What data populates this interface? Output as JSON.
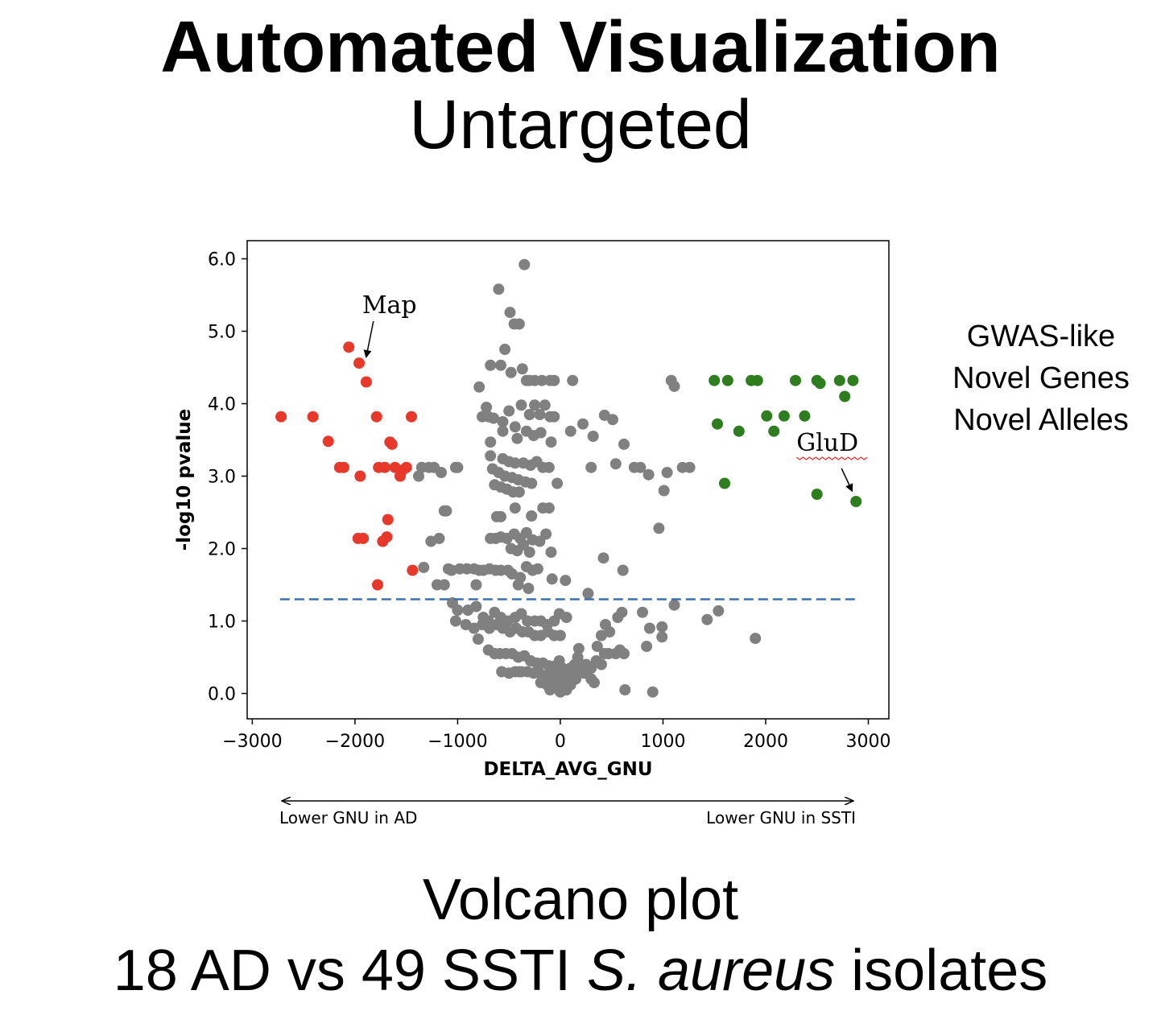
{
  "page": {
    "title": "Automated Visualization",
    "subtitle": "Untargeted",
    "side_notes": [
      "GWAS-like",
      "Novel Genes",
      "Novel Alleles"
    ],
    "caption_line1": "Volcano plot",
    "caption_line2_pre": "18 AD vs 49 SSTI ",
    "caption_line2_italic": "S. aureus",
    "caption_line2_post": " isolates"
  },
  "chart_data": {
    "type": "scatter",
    "xlabel": "DELTA_AVG_GNU",
    "ylabel": "-log10 pvalue",
    "xlim": [
      -3050,
      3200
    ],
    "ylim": [
      -0.35,
      6.25
    ],
    "xticks": [
      -3000,
      -2000,
      -1000,
      0,
      1000,
      2000,
      3000
    ],
    "xtick_labels": [
      "−3000",
      "−2000",
      "−1000",
      "0",
      "1000",
      "2000",
      "3000"
    ],
    "yticks": [
      0,
      1,
      2,
      3,
      4,
      5,
      6
    ],
    "ytick_labels": [
      "0.0",
      "1.0",
      "2.0",
      "3.0",
      "4.0",
      "5.0",
      "6.0"
    ],
    "threshold": {
      "y": 1.3,
      "x_from": -2730,
      "x_to": 2880,
      "color": "#3a6fb0",
      "style": "dashed"
    },
    "direction": {
      "left_label": "Lower GNU in AD",
      "right_label": "Lower GNU in SSTI"
    },
    "annotations": [
      {
        "text": "Map",
        "x": -1930,
        "y": 5.25,
        "point_x": -1890,
        "point_y": 4.65
      },
      {
        "text": "GluD",
        "x": -1,
        "y": 0,
        "text_x": 2300,
        "text_y": 3.35,
        "point_x": 2840,
        "point_y": 2.8
      }
    ],
    "colors": {
      "down": "#e8382a",
      "up": "#2e7d1e",
      "ns": "#808080"
    },
    "series": [
      {
        "color": "#e8382a",
        "points": [
          [
            -2720,
            3.82
          ],
          [
            -2410,
            3.82
          ],
          [
            -2260,
            3.48
          ],
          [
            -2150,
            3.12
          ],
          [
            -2110,
            3.12
          ],
          [
            -1950,
            3.0
          ],
          [
            -1790,
            3.82
          ],
          [
            -1770,
            3.12
          ],
          [
            -1710,
            3.12
          ],
          [
            -1660,
            3.47
          ],
          [
            -1640,
            3.44
          ],
          [
            -1610,
            3.12
          ],
          [
            -1560,
            3.0
          ],
          [
            -1540,
            3.08
          ],
          [
            -1500,
            3.12
          ],
          [
            -1450,
            3.82
          ],
          [
            -2060,
            4.78
          ],
          [
            -1960,
            4.56
          ],
          [
            -1890,
            4.3
          ],
          [
            -1680,
            2.4
          ],
          [
            -1970,
            2.14
          ],
          [
            -1920,
            2.14
          ],
          [
            -1690,
            2.16
          ],
          [
            -1730,
            2.1
          ],
          [
            -1780,
            1.5
          ],
          [
            -1440,
            1.7
          ]
        ]
      },
      {
        "color": "#2e7d1e",
        "points": [
          [
            1500,
            4.32
          ],
          [
            1630,
            4.32
          ],
          [
            1860,
            4.32
          ],
          [
            1920,
            4.32
          ],
          [
            2290,
            4.32
          ],
          [
            2500,
            4.32
          ],
          [
            2530,
            4.28
          ],
          [
            2720,
            4.32
          ],
          [
            2850,
            4.32
          ],
          [
            2770,
            4.1
          ],
          [
            1530,
            3.72
          ],
          [
            1740,
            3.62
          ],
          [
            2010,
            3.83
          ],
          [
            2180,
            3.83
          ],
          [
            2380,
            3.83
          ],
          [
            2080,
            3.62
          ],
          [
            1600,
            2.9
          ],
          [
            2500,
            2.75
          ],
          [
            2880,
            2.65
          ]
        ]
      },
      {
        "color": "#808080",
        "points": [
          [
            -350,
            5.92
          ],
          [
            -600,
            5.58
          ],
          [
            -490,
            5.26
          ],
          [
            -450,
            5.1
          ],
          [
            -400,
            5.1
          ],
          [
            -540,
            4.75
          ],
          [
            -680,
            4.53
          ],
          [
            -580,
            4.53
          ],
          [
            -480,
            4.43
          ],
          [
            -370,
            4.48
          ],
          [
            -330,
            4.32
          ],
          [
            -300,
            4.32
          ],
          [
            -250,
            4.32
          ],
          [
            -180,
            4.32
          ],
          [
            -100,
            4.32
          ],
          [
            -60,
            4.32
          ],
          [
            120,
            4.32
          ],
          [
            1080,
            4.32
          ],
          [
            1110,
            4.24
          ],
          [
            -790,
            4.23
          ],
          [
            -720,
            3.95
          ],
          [
            -500,
            3.9
          ],
          [
            -380,
            3.98
          ],
          [
            -300,
            3.85
          ],
          [
            -250,
            3.98
          ],
          [
            -200,
            3.85
          ],
          [
            -150,
            3.98
          ],
          [
            -100,
            3.82
          ],
          [
            -60,
            3.82
          ],
          [
            -760,
            3.82
          ],
          [
            -700,
            3.82
          ],
          [
            -650,
            3.8
          ],
          [
            -560,
            3.75
          ],
          [
            -440,
            3.68
          ],
          [
            -330,
            3.62
          ],
          [
            -260,
            3.56
          ],
          [
            -190,
            3.6
          ],
          [
            -90,
            3.47
          ],
          [
            -680,
            3.47
          ],
          [
            -420,
            3.52
          ],
          [
            -560,
            3.62
          ],
          [
            100,
            3.62
          ],
          [
            220,
            3.72
          ],
          [
            320,
            3.55
          ],
          [
            430,
            3.84
          ],
          [
            510,
            3.78
          ],
          [
            620,
            3.44
          ],
          [
            -680,
            3.28
          ],
          [
            -560,
            3.24
          ],
          [
            -500,
            3.2
          ],
          [
            -440,
            3.18
          ],
          [
            -360,
            3.18
          ],
          [
            -290,
            3.15
          ],
          [
            -230,
            3.2
          ],
          [
            -170,
            3.12
          ],
          [
            -110,
            3.12
          ],
          [
            -660,
            3.1
          ],
          [
            -600,
            3.05
          ],
          [
            -540,
            3.0
          ],
          [
            -470,
            2.98
          ],
          [
            -410,
            2.95
          ],
          [
            -340,
            2.92
          ],
          [
            -280,
            2.9
          ],
          [
            -640,
            2.88
          ],
          [
            -580,
            2.85
          ],
          [
            -520,
            2.82
          ],
          [
            -460,
            2.78
          ],
          [
            -400,
            2.78
          ],
          [
            -30,
            2.9
          ],
          [
            -1280,
            3.12
          ],
          [
            -1230,
            3.12
          ],
          [
            -1020,
            3.12
          ],
          [
            -1000,
            3.12
          ],
          [
            -1350,
            3.12
          ],
          [
            -1380,
            3.0
          ],
          [
            -1160,
            3.05
          ],
          [
            300,
            3.12
          ],
          [
            540,
            3.17
          ],
          [
            720,
            3.12
          ],
          [
            780,
            3.12
          ],
          [
            860,
            3.02
          ],
          [
            1040,
            3.05
          ],
          [
            1190,
            3.12
          ],
          [
            1260,
            3.12
          ],
          [
            1010,
            2.8
          ],
          [
            -1130,
            2.52
          ],
          [
            -1110,
            2.52
          ],
          [
            -620,
            2.44
          ],
          [
            -580,
            2.44
          ],
          [
            -440,
            2.56
          ],
          [
            -280,
            2.45
          ],
          [
            -170,
            2.56
          ],
          [
            -110,
            2.56
          ],
          [
            -680,
            2.14
          ],
          [
            -630,
            2.14
          ],
          [
            -580,
            2.16
          ],
          [
            -520,
            2.14
          ],
          [
            -450,
            2.2
          ],
          [
            -390,
            2.14
          ],
          [
            -330,
            2.22
          ],
          [
            -270,
            2.12
          ],
          [
            -200,
            2.1
          ],
          [
            -140,
            2.2
          ],
          [
            -1180,
            2.14
          ],
          [
            -1260,
            2.1
          ],
          [
            -480,
            2.0
          ],
          [
            -420,
            1.97
          ],
          [
            -360,
            2.05
          ],
          [
            -300,
            1.95
          ],
          [
            -90,
            1.95
          ],
          [
            -1330,
            1.74
          ],
          [
            -1090,
            1.72
          ],
          [
            -1060,
            1.7
          ],
          [
            -980,
            1.72
          ],
          [
            -910,
            1.72
          ],
          [
            -840,
            1.72
          ],
          [
            -790,
            1.7
          ],
          [
            -750,
            1.7
          ],
          [
            -690,
            1.72
          ],
          [
            -630,
            1.7
          ],
          [
            -580,
            1.7
          ],
          [
            -510,
            1.7
          ],
          [
            -470,
            1.65
          ],
          [
            -390,
            1.6
          ],
          [
            -330,
            1.75
          ],
          [
            -270,
            1.7
          ],
          [
            -220,
            1.72
          ],
          [
            -410,
            1.5
          ],
          [
            -310,
            1.45
          ],
          [
            -1200,
            1.5
          ],
          [
            -1130,
            1.5
          ],
          [
            -820,
            1.5
          ],
          [
            -80,
            1.58
          ],
          [
            50,
            1.56
          ],
          [
            270,
            1.38
          ],
          [
            420,
            1.87
          ],
          [
            610,
            1.7
          ],
          [
            960,
            2.28
          ],
          [
            -1050,
            1.25
          ],
          [
            -1000,
            1.15
          ],
          [
            -900,
            1.15
          ],
          [
            -820,
            1.2
          ],
          [
            -750,
            1.05
          ],
          [
            -700,
            1.0
          ],
          [
            -640,
            1.12
          ],
          [
            -580,
            1.05
          ],
          [
            -510,
            1.0
          ],
          [
            -440,
            1.05
          ],
          [
            -380,
            1.1
          ],
          [
            -320,
            1.0
          ],
          [
            -250,
            1.0
          ],
          [
            -190,
            1.0
          ],
          [
            -130,
            0.95
          ],
          [
            -60,
            1.0
          ],
          [
            -10,
            1.1
          ],
          [
            60,
            1.05
          ],
          [
            -1020,
            1.0
          ],
          [
            -920,
            0.95
          ],
          [
            -840,
            0.9
          ],
          [
            -760,
            0.95
          ],
          [
            -690,
            0.9
          ],
          [
            -620,
            0.95
          ],
          [
            -560,
            0.9
          ],
          [
            -490,
            0.85
          ],
          [
            -430,
            0.9
          ],
          [
            -370,
            0.85
          ],
          [
            -310,
            0.85
          ],
          [
            -250,
            0.8
          ],
          [
            -190,
            0.8
          ],
          [
            -120,
            0.85
          ],
          [
            -60,
            0.8
          ],
          [
            0,
            0.8
          ],
          [
            -800,
            0.75
          ],
          [
            -700,
            0.6
          ],
          [
            -640,
            0.55
          ],
          [
            -590,
            0.55
          ],
          [
            -530,
            0.55
          ],
          [
            -470,
            0.55
          ],
          [
            -410,
            0.5
          ],
          [
            -350,
            0.52
          ],
          [
            -290,
            0.45
          ],
          [
            -230,
            0.42
          ],
          [
            -170,
            0.42
          ],
          [
            -110,
            0.38
          ],
          [
            -50,
            0.38
          ],
          [
            20,
            0.35
          ],
          [
            80,
            0.3
          ],
          [
            -400,
            0.3
          ],
          [
            -320,
            0.3
          ],
          [
            -260,
            0.28
          ],
          [
            -200,
            0.28
          ],
          [
            -140,
            0.25
          ],
          [
            -80,
            0.22
          ],
          [
            -30,
            0.2
          ],
          [
            30,
            0.22
          ],
          [
            90,
            0.18
          ],
          [
            150,
            0.25
          ],
          [
            -440,
            0.3
          ],
          [
            -380,
            0.3
          ],
          [
            -190,
            0.15
          ],
          [
            -130,
            0.12
          ],
          [
            -70,
            0.1
          ],
          [
            -20,
            0.08
          ],
          [
            40,
            0.1
          ],
          [
            100,
            0.12
          ],
          [
            -100,
            0.05
          ],
          [
            0,
            0.02
          ],
          [
            60,
            0.05
          ],
          [
            -570,
            0.3
          ],
          [
            -500,
            0.28
          ],
          [
            200,
            0.35
          ],
          [
            250,
            0.4
          ],
          [
            300,
            0.35
          ],
          [
            350,
            0.45
          ],
          [
            400,
            0.4
          ],
          [
            430,
            0.55
          ],
          [
            470,
            0.55
          ],
          [
            360,
            0.65
          ],
          [
            180,
            0.62
          ],
          [
            170,
            0.5
          ],
          [
            140,
            0.4
          ],
          [
            230,
            0.28
          ],
          [
            300,
            0.2
          ],
          [
            330,
            0.15
          ],
          [
            150,
            0.2
          ],
          [
            100,
            0.35
          ],
          [
            60,
            0.28
          ],
          [
            10,
            0.25
          ],
          [
            -30,
            0.32
          ],
          [
            -10,
            0.45
          ],
          [
            -60,
            0.35
          ],
          [
            400,
            0.8
          ],
          [
            440,
            0.95
          ],
          [
            480,
            0.85
          ],
          [
            540,
            0.55
          ],
          [
            560,
            1.05
          ],
          [
            600,
            1.12
          ],
          [
            580,
            0.6
          ],
          [
            620,
            0.55
          ],
          [
            630,
            0.05
          ],
          [
            900,
            0.02
          ],
          [
            800,
            1.12
          ],
          [
            840,
            0.65
          ],
          [
            870,
            0.9
          ],
          [
            990,
            0.92
          ],
          [
            990,
            0.78
          ],
          [
            1110,
            1.22
          ],
          [
            1430,
            1.02
          ],
          [
            1540,
            1.14
          ],
          [
            1900,
            0.76
          ]
        ]
      }
    ]
  }
}
